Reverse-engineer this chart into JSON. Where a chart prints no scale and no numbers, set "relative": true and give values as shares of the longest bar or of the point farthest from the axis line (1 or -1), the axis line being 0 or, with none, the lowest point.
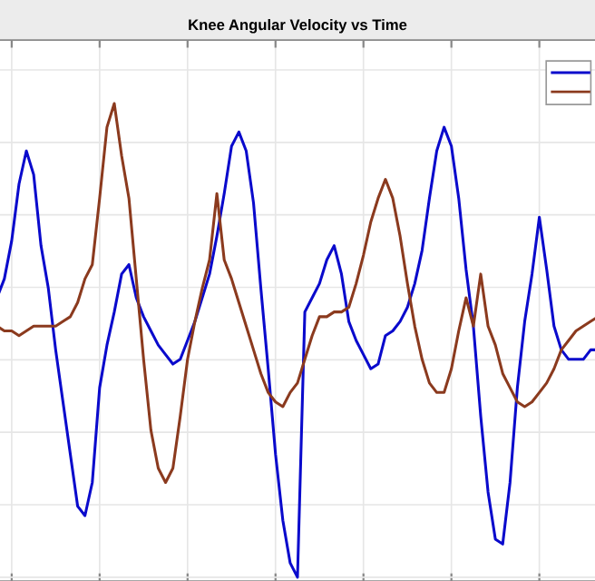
{
  "chart_data": {
    "type": "line",
    "title": "Knee Angular Velocity vs Time",
    "relative": true,
    "grid": true,
    "categories": [
      null,
      null,
      null,
      null,
      null,
      null,
      null,
      null,
      null,
      null,
      null,
      null,
      null,
      null,
      null,
      null,
      null,
      null,
      null,
      null,
      null,
      null,
      null,
      null,
      null,
      null,
      null,
      null,
      null,
      null,
      null,
      null,
      null,
      null,
      null,
      null,
      null,
      null,
      null,
      null,
      null,
      null,
      null,
      null,
      null,
      null,
      null,
      null,
      null,
      null,
      null,
      null,
      null,
      null,
      null,
      null,
      null,
      null,
      null,
      null,
      null,
      null,
      null,
      null,
      null,
      null,
      null,
      null,
      null,
      null,
      null,
      null,
      null,
      null,
      null,
      null,
      null,
      null,
      null,
      null,
      null,
      null,
      null
    ],
    "series": [
      {
        "color": "#0a0acc",
        "values": [
          0.59,
          0.63,
          0.71,
          0.83,
          0.9,
          0.85,
          0.7,
          0.61,
          0.48,
          0.37,
          0.26,
          0.15,
          0.13,
          0.2,
          0.4,
          0.49,
          0.56,
          0.64,
          0.66,
          0.59,
          0.55,
          0.52,
          0.49,
          0.47,
          0.45,
          0.46,
          0.5,
          0.54,
          0.59,
          0.64,
          0.72,
          0.81,
          0.91,
          0.94,
          0.9,
          0.79,
          0.61,
          0.44,
          0.26,
          0.12,
          0.03,
          0.0,
          0.56,
          0.59,
          0.62,
          0.67,
          0.7,
          0.64,
          0.54,
          0.5,
          0.47,
          0.44,
          0.45,
          0.51,
          0.52,
          0.54,
          0.57,
          0.62,
          0.69,
          0.8,
          0.9,
          0.95,
          0.91,
          0.8,
          0.65,
          0.53,
          0.34,
          0.18,
          0.08,
          0.07,
          0.2,
          0.4,
          0.54,
          0.64,
          0.76,
          0.65,
          0.53,
          0.48,
          0.46,
          0.46,
          0.46,
          0.48,
          0.48
        ]
      },
      {
        "color": "#8b3a1e",
        "values": [
          0.53,
          0.52,
          0.52,
          0.51,
          0.52,
          0.53,
          0.53,
          0.53,
          0.53,
          0.54,
          0.55,
          0.58,
          0.63,
          0.66,
          0.8,
          0.95,
          1.0,
          0.89,
          0.8,
          0.63,
          0.46,
          0.31,
          0.23,
          0.2,
          0.23,
          0.34,
          0.46,
          0.54,
          0.61,
          0.67,
          0.81,
          0.67,
          0.63,
          0.58,
          0.53,
          0.48,
          0.43,
          0.39,
          0.37,
          0.36,
          0.39,
          0.41,
          0.46,
          0.51,
          0.55,
          0.55,
          0.56,
          0.56,
          0.57,
          0.62,
          0.68,
          0.75,
          0.8,
          0.84,
          0.8,
          0.72,
          0.62,
          0.53,
          0.46,
          0.41,
          0.39,
          0.39,
          0.44,
          0.52,
          0.59,
          0.53,
          0.64,
          0.53,
          0.49,
          0.43,
          0.4,
          0.37,
          0.36,
          0.37,
          0.39,
          0.41,
          0.44,
          0.48,
          0.5,
          0.52,
          0.53,
          0.54,
          0.55
        ]
      }
    ]
  }
}
